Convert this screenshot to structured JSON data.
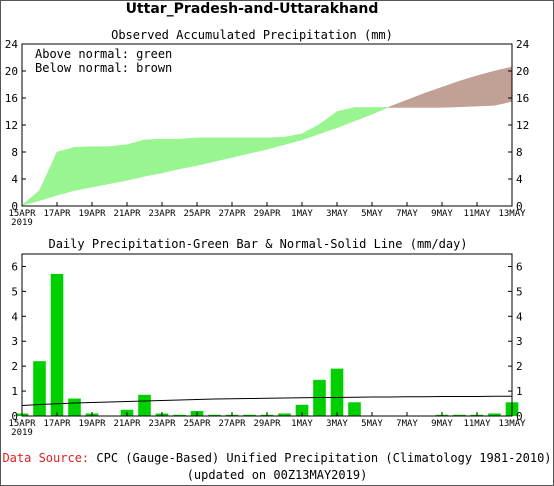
{
  "title": "Uttar_Pradesh-and-Uttarakhand",
  "chart_data": [
    {
      "type": "area",
      "title": "Observed Accumulated Precipitation (mm)",
      "legend": [
        "Above normal: green",
        "Below normal: brown"
      ],
      "colors": {
        "above": "#98f590",
        "below": "#c1a095"
      },
      "x": [
        "15APR",
        "16APR",
        "17APR",
        "18APR",
        "19APR",
        "20APR",
        "21APR",
        "22APR",
        "23APR",
        "24APR",
        "25APR",
        "26APR",
        "27APR",
        "28APR",
        "29APR",
        "30APR",
        "1MAY",
        "2MAY",
        "3MAY",
        "4MAY",
        "5MAY",
        "6MAY",
        "7MAY",
        "8MAY",
        "9MAY",
        "10MAY",
        "11MAY",
        "12MAY",
        "13MAY"
      ],
      "observed": [
        0.1,
        2.3,
        8.0,
        8.7,
        8.8,
        8.8,
        9.1,
        9.8,
        9.9,
        9.9,
        10.1,
        10.1,
        10.1,
        10.1,
        10.1,
        10.2,
        10.7,
        12.1,
        14.0,
        14.6,
        14.6,
        14.6,
        14.6,
        14.6,
        14.6,
        14.7,
        14.8,
        14.9,
        15.5
      ],
      "normal": [
        0.1,
        0.8,
        1.6,
        2.3,
        2.8,
        3.3,
        3.8,
        4.4,
        4.9,
        5.5,
        6.0,
        6.6,
        7.2,
        7.8,
        8.4,
        9.1,
        9.8,
        10.7,
        11.6,
        12.6,
        13.6,
        14.7,
        15.7,
        16.7,
        17.6,
        18.5,
        19.3,
        20.0,
        20.6
      ],
      "x_ticks": [
        "15APR",
        "17APR",
        "19APR",
        "21APR",
        "23APR",
        "25APR",
        "27APR",
        "29APR",
        "1MAY",
        "3MAY",
        "5MAY",
        "7MAY",
        "9MAY",
        "11MAY",
        "13MAY"
      ],
      "x_tick_year": "2019",
      "yticks": [
        "0",
        "4",
        "8",
        "12",
        "16",
        "20",
        "24"
      ],
      "ylim": [
        0,
        24
      ]
    },
    {
      "type": "bar",
      "title": "Daily Precipitation-Green Bar & Normal-Solid Line (mm/day)",
      "colors": {
        "bar": "#00d000",
        "line": "#000000"
      },
      "x": [
        "15APR",
        "16APR",
        "17APR",
        "18APR",
        "19APR",
        "20APR",
        "21APR",
        "22APR",
        "23APR",
        "24APR",
        "25APR",
        "26APR",
        "27APR",
        "28APR",
        "29APR",
        "30APR",
        "1MAY",
        "2MAY",
        "3MAY",
        "4MAY",
        "5MAY",
        "6MAY",
        "7MAY",
        "8MAY",
        "9MAY",
        "10MAY",
        "11MAY",
        "12MAY",
        "13MAY"
      ],
      "values": [
        0.1,
        2.2,
        5.7,
        0.7,
        0.1,
        0.0,
        0.25,
        0.85,
        0.1,
        0.05,
        0.2,
        0.05,
        0.05,
        0.05,
        0.05,
        0.1,
        0.45,
        1.45,
        1.9,
        0.55,
        0.0,
        0.0,
        0.0,
        0.0,
        0.05,
        0.05,
        0.05,
        0.1,
        0.55
      ],
      "normal": [
        0.42,
        0.46,
        0.49,
        0.52,
        0.54,
        0.56,
        0.58,
        0.6,
        0.62,
        0.64,
        0.66,
        0.68,
        0.69,
        0.7,
        0.71,
        0.72,
        0.73,
        0.74,
        0.74,
        0.75,
        0.76,
        0.76,
        0.77,
        0.77,
        0.78,
        0.78,
        0.78,
        0.79,
        0.79
      ],
      "x_ticks": [
        "15APR",
        "17APR",
        "19APR",
        "21APR",
        "23APR",
        "25APR",
        "27APR",
        "29APR",
        "1MAY",
        "3MAY",
        "5MAY",
        "7MAY",
        "9MAY",
        "11MAY",
        "13MAY"
      ],
      "x_tick_year": "2019",
      "yticks": [
        "0",
        "1",
        "2",
        "3",
        "4",
        "5",
        "6"
      ],
      "ylim": [
        0,
        6.5
      ]
    }
  ],
  "footer": {
    "source_label": "Data Source:",
    "source_text": " CPC (Gauge-Based) Unified Precipitation (Climatology 1981-2010)",
    "source_label_color": "#e02020",
    "updated": "(updated on 00Z13MAY2019)"
  }
}
